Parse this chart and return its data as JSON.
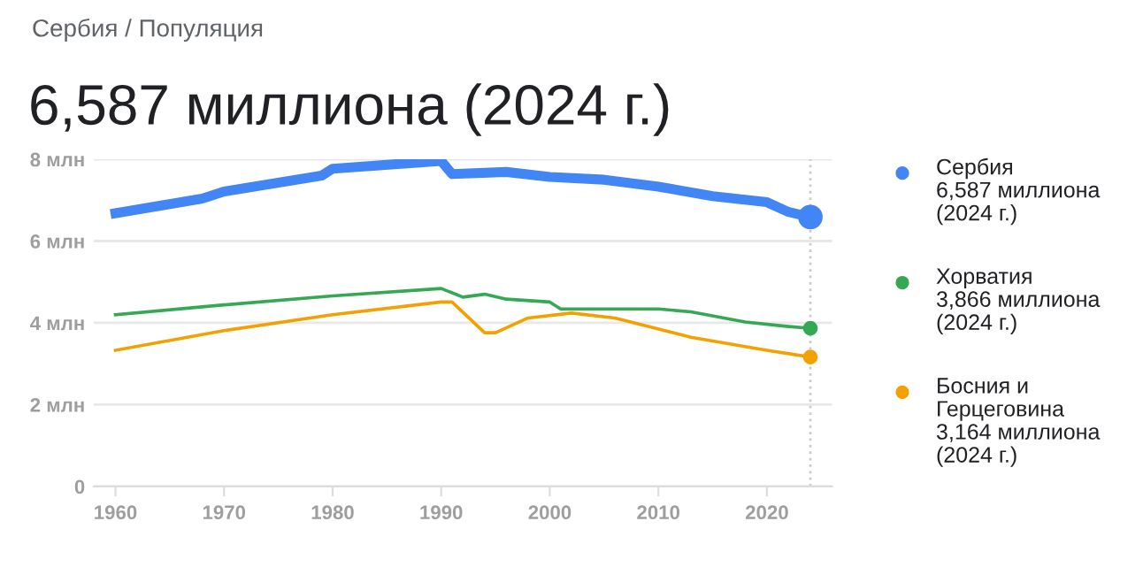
{
  "chart_data": {
    "type": "line",
    "subtitle": "Сербия / Популяция",
    "title": "6,587 миллиона (2024 г.)",
    "series": [
      {
        "name": "Сербия",
        "color": "#4285f4",
        "x": [
          1960,
          1968,
          1970,
          1979,
          1980,
          1990,
          1991,
          1996,
          2000,
          2005,
          2010,
          2015,
          2020,
          2022,
          2024
        ],
        "values": [
          6.68,
          7.04,
          7.21,
          7.6,
          7.77,
          7.96,
          7.64,
          7.69,
          7.57,
          7.5,
          7.33,
          7.1,
          6.95,
          6.71,
          6.587
        ]
      },
      {
        "name": "Хорватия",
        "color": "#34a853",
        "x": [
          1960,
          1970,
          1980,
          1990,
          1992,
          1994,
          1996,
          2000,
          2001,
          2010,
          2013,
          2018,
          2022,
          2024
        ],
        "values": [
          4.2,
          4.44,
          4.66,
          4.84,
          4.63,
          4.7,
          4.58,
          4.51,
          4.34,
          4.34,
          4.27,
          4.02,
          3.91,
          3.866
        ]
      },
      {
        "name": "Босния и\nГерцеговина",
        "color": "#f4a000",
        "x": [
          1960,
          1970,
          1980,
          1990,
          1991,
          1994,
          1995,
          1998,
          2002,
          2006,
          2013,
          2020,
          2024
        ],
        "values": [
          3.33,
          3.81,
          4.2,
          4.51,
          4.51,
          3.76,
          3.76,
          4.12,
          4.24,
          4.12,
          3.65,
          3.33,
          3.164
        ]
      }
    ],
    "annotations": [
      "6,587 миллиона\n(2024 г.)",
      "3,866 миллиона\n(2024 г.)",
      "3,164 миллиона\n(2024 г.)"
    ],
    "xlim": [
      1958,
      2026
    ],
    "xticks": [
      1960,
      1970,
      1980,
      1990,
      2000,
      2010,
      2020
    ],
    "ylim": [
      0,
      8
    ],
    "yticks": [
      {
        "value": 0,
        "label": "0"
      },
      {
        "value": 2,
        "label": "2 млн"
      },
      {
        "value": 4,
        "label": "4 млн"
      },
      {
        "value": 6,
        "label": "6 млн"
      },
      {
        "value": 8,
        "label": "8 млн"
      }
    ],
    "ref_lines": [
      {
        "axis": "x",
        "value": 2024,
        "label": null,
        "color": "#cccccc",
        "line_style": "dotted"
      }
    ],
    "grid": "y",
    "legend": "right"
  }
}
